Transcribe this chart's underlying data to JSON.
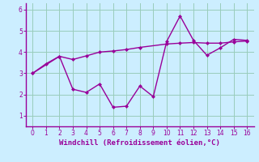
{
  "line1_x": [
    0,
    1,
    2,
    3,
    4,
    5,
    6,
    7,
    8,
    9,
    10,
    11,
    12,
    13,
    14,
    15,
    16
  ],
  "line1_y": [
    3.0,
    3.45,
    3.8,
    2.25,
    2.1,
    2.5,
    1.4,
    1.45,
    2.4,
    1.9,
    4.5,
    5.7,
    4.55,
    3.85,
    4.2,
    4.6,
    4.55
  ],
  "line2_x": [
    0,
    2,
    3,
    4,
    5,
    6,
    7,
    8,
    10,
    11,
    12,
    13,
    14,
    15,
    16
  ],
  "line2_y": [
    3.0,
    3.8,
    3.65,
    3.82,
    4.0,
    4.05,
    4.12,
    4.22,
    4.38,
    4.42,
    4.45,
    4.42,
    4.42,
    4.48,
    4.52
  ],
  "line_color": "#990099",
  "bg_color": "#cceeff",
  "grid_color": "#99ccbb",
  "xlabel": "Windchill (Refroidissement éolien,°C)",
  "xlim": [
    -0.5,
    16.5
  ],
  "ylim": [
    0.5,
    6.3
  ],
  "xticks": [
    0,
    1,
    2,
    3,
    4,
    5,
    6,
    7,
    8,
    9,
    10,
    11,
    12,
    13,
    14,
    15,
    16
  ],
  "yticks": [
    1,
    2,
    3,
    4,
    5,
    6
  ],
  "marker": "D",
  "markersize": 2.5,
  "linewidth": 1.0
}
